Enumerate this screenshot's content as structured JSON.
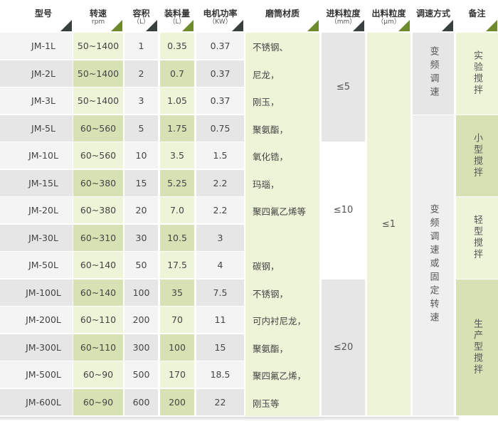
{
  "headers": [
    {
      "title": "型号",
      "sub": "",
      "tri": "dark"
    },
    {
      "title": "转速",
      "sub": "rpm",
      "tri": "green"
    },
    {
      "title": "容积",
      "sub": "（L）",
      "tri": "dark"
    },
    {
      "title": "装料量",
      "sub": "（L）",
      "tri": "green"
    },
    {
      "title": "电机功率",
      "sub": "（KW）",
      "tri": "dark"
    },
    {
      "title": "磨筒材质",
      "sub": "",
      "tri": "green"
    },
    {
      "title": "进料粒度",
      "sub": "（mm）",
      "tri": "dark"
    },
    {
      "title": "出料粒度",
      "sub": "（μm）",
      "tri": "green"
    },
    {
      "title": "调速方式",
      "sub": "",
      "tri": "dark"
    },
    {
      "title": "备注",
      "sub": "",
      "tri": "green"
    }
  ],
  "rows": [
    {
      "model": "JM-1L",
      "rpm": "50~1400",
      "volume": "1",
      "load": "0.35",
      "power": "0.37"
    },
    {
      "model": "JM-2L",
      "rpm": "50~1400",
      "volume": "2",
      "load": "0.7",
      "power": "0.37"
    },
    {
      "model": "JM-3L",
      "rpm": "50~1400",
      "volume": "3",
      "load": "1.05",
      "power": "0.37"
    },
    {
      "model": "JM-5L",
      "rpm": "60~560",
      "volume": "5",
      "load": "1.75",
      "power": "0.75"
    },
    {
      "model": "JM-10L",
      "rpm": "60~560",
      "volume": "10",
      "load": "3.5",
      "power": "1.5"
    },
    {
      "model": "JM-15L",
      "rpm": "60~380",
      "volume": "15",
      "load": "5.25",
      "power": "2.2"
    },
    {
      "model": "JM-20L",
      "rpm": "60~380",
      "volume": "20",
      "load": "7.0",
      "power": "2.2"
    },
    {
      "model": "JM-30L",
      "rpm": "60~310",
      "volume": "30",
      "load": "10.5",
      "power": "3"
    },
    {
      "model": "JM-50L",
      "rpm": "60~140",
      "volume": "50",
      "load": "17.5",
      "power": "4"
    },
    {
      "model": "JM-100L",
      "rpm": "60~140",
      "volume": "100",
      "load": "35",
      "power": "7.5"
    },
    {
      "model": "JM-200L",
      "rpm": "60~110",
      "volume": "200",
      "load": "70",
      "power": "11"
    },
    {
      "model": "JM-300L",
      "rpm": "60~110",
      "volume": "300",
      "load": "100",
      "power": "15"
    },
    {
      "model": "JM-500L",
      "rpm": "60~90",
      "volume": "500",
      "load": "170",
      "power": "18.5"
    },
    {
      "model": "JM-600L",
      "rpm": "60~90",
      "volume": "600",
      "load": "200",
      "power": "22"
    }
  ],
  "materials": [
    {
      "text": "不锈钢、",
      "row": 0
    },
    {
      "text": "尼龙，",
      "row": 1
    },
    {
      "text": "刚玉，",
      "row": 2
    },
    {
      "text": "聚氨酯，",
      "row": 3
    },
    {
      "text": "氧化锆，",
      "row": 4
    },
    {
      "text": "玛瑙，",
      "row": 5
    },
    {
      "text": "聚四氟乙烯等",
      "row": 6
    },
    {
      "text": "碳钢，",
      "row": 8
    },
    {
      "text": "不锈钢，",
      "row": 9
    },
    {
      "text": "可内衬尼龙，",
      "row": 10
    },
    {
      "text": "聚氨酯，",
      "row": 11
    },
    {
      "text": "聚四氟乙烯，",
      "row": 12
    },
    {
      "text": "刚玉等",
      "row": 13
    }
  ],
  "feed": [
    {
      "text": "≤5",
      "from": 0,
      "to": 3
    },
    {
      "text": "≤10",
      "from": 4,
      "to": 8
    },
    {
      "text": "≤20",
      "from": 9,
      "to": 13
    }
  ],
  "output": [
    {
      "text": "≤1",
      "from": 0,
      "to": 13
    }
  ],
  "speed": [
    {
      "text": "变频调速",
      "from": 0,
      "to": 2
    },
    {
      "text": "变频调速或固定转速",
      "from": 3,
      "to": 13
    }
  ],
  "notes": [
    {
      "text": "实验搅拌",
      "from": 0,
      "to": 2
    },
    {
      "text": "小型搅拌",
      "from": 3,
      "to": 5
    },
    {
      "text": "轻型搅拌",
      "from": 6,
      "to": 8
    },
    {
      "text": "生产型搅拌",
      "from": 9,
      "to": 13
    }
  ],
  "colors": {
    "green_dark": "#d6e2b4",
    "green_light": "#eef4d8",
    "gray_dark": "#e6e6e6",
    "gray_light": "#f4f4f4",
    "tri_dark": "#3a3f3f",
    "tri_green": "#6e8a2a"
  }
}
